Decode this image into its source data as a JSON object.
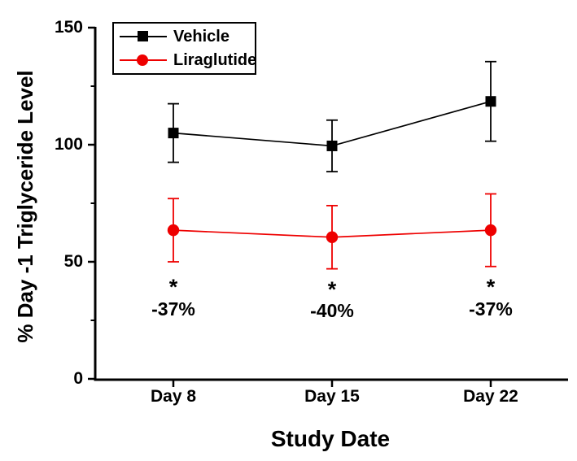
{
  "chart_data": {
    "type": "line",
    "title": "",
    "xlabel": "Study Date",
    "ylabel": "% Day -1 Triglyceride Level",
    "categories": [
      "Day 8",
      "Day 15",
      "Day 22"
    ],
    "ylim": [
      0,
      150
    ],
    "yticks": [
      0,
      50,
      100,
      150
    ],
    "yticks_minor": [
      25,
      75,
      125
    ],
    "grid": false,
    "background": "#ffffff",
    "axis_color": "#000000",
    "legend": {
      "position": "top-left-inside",
      "border_color": "#000000"
    },
    "series": [
      {
        "name": "Vehicle",
        "marker": "square",
        "color": "#000000",
        "values": [
          105,
          99.5,
          118.5
        ],
        "errors": [
          12.5,
          11,
          17
        ]
      },
      {
        "name": "Liraglutide",
        "marker": "circle",
        "color": "#ee0000",
        "values": [
          63.5,
          60.5,
          63.5
        ],
        "errors": [
          13.5,
          13.5,
          15.5
        ]
      }
    ],
    "annotations": [
      {
        "category": "Day 8",
        "star": "*",
        "label": "-37%"
      },
      {
        "category": "Day 15",
        "star": "*",
        "label": "-40%"
      },
      {
        "category": "Day 22",
        "star": "*",
        "label": "-37%"
      }
    ]
  }
}
